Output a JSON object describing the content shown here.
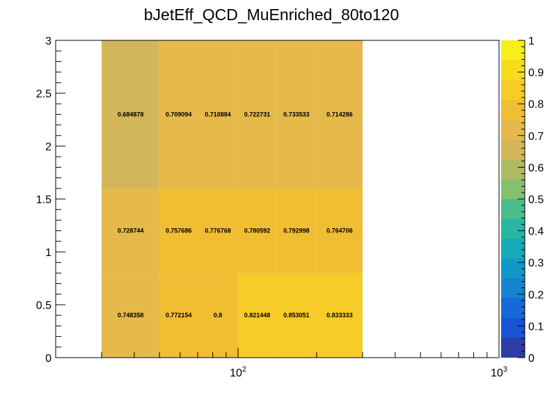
{
  "chart_data": {
    "type": "heatmap",
    "title": "bJetEff_QCD_MuEnriched_80to120",
    "xlabel": "",
    "ylabel": "",
    "x_scale": "log",
    "xlim": [
      20,
      1000
    ],
    "ylim": [
      0,
      3
    ],
    "x_edges": [
      30,
      50,
      70,
      100,
      140,
      200,
      300
    ],
    "y_edges": [
      0,
      0.8,
      1.6,
      3.0
    ],
    "values": [
      [
        0.748358,
        0.772154,
        0.8,
        0.821448,
        0.853051,
        0.833333
      ],
      [
        0.728744,
        0.757686,
        0.776768,
        0.780592,
        0.792998,
        0.764706
      ],
      [
        0.684878,
        0.709094,
        0.710884,
        0.722731,
        0.733533,
        0.714286
      ]
    ],
    "labels": [
      [
        "0.748358",
        "0.772154",
        "0.8",
        "0.821448",
        "0.853051",
        "0.833333"
      ],
      [
        "0.728744",
        "0.757686",
        "0.776768",
        "0.780592",
        "0.792998",
        "0.764706"
      ],
      [
        "0.684878",
        "0.709094",
        "0.710884",
        "0.722731",
        "0.733533",
        "0.714286"
      ]
    ],
    "x_tick_labels": [
      {
        "value": 100,
        "base": "10",
        "exp": "2"
      },
      {
        "value": 1000,
        "base": "10",
        "exp": "3"
      }
    ],
    "y_ticks": [
      0,
      0.5,
      1,
      1.5,
      2,
      2.5,
      3
    ],
    "y_tick_labels": [
      "0",
      "0.5",
      "1",
      "1.5",
      "2",
      "2.5",
      "3"
    ],
    "zlim": [
      0,
      1
    ],
    "colorbar_ticks": [
      0,
      0.1,
      0.2,
      0.3,
      0.4,
      0.5,
      0.6,
      0.7,
      0.8,
      0.9,
      1
    ],
    "colorbar_tick_labels": [
      "0",
      "0.1",
      "0.2",
      "0.3",
      "0.4",
      "0.5",
      "0.6",
      "0.7",
      "0.8",
      "0.9",
      "1"
    ],
    "colorbar_colors": [
      "#2c3ea6",
      "#1a54d4",
      "#1669d8",
      "#1584d0",
      "#0f98c8",
      "#16aab8",
      "#28b6a3",
      "#4ebd8d",
      "#86c06e",
      "#b0ba62",
      "#d4b65a",
      "#e5b94a",
      "#f1bd33",
      "#f7cb28",
      "#f7dc1e",
      "#f7ef1a"
    ],
    "grid": false
  }
}
